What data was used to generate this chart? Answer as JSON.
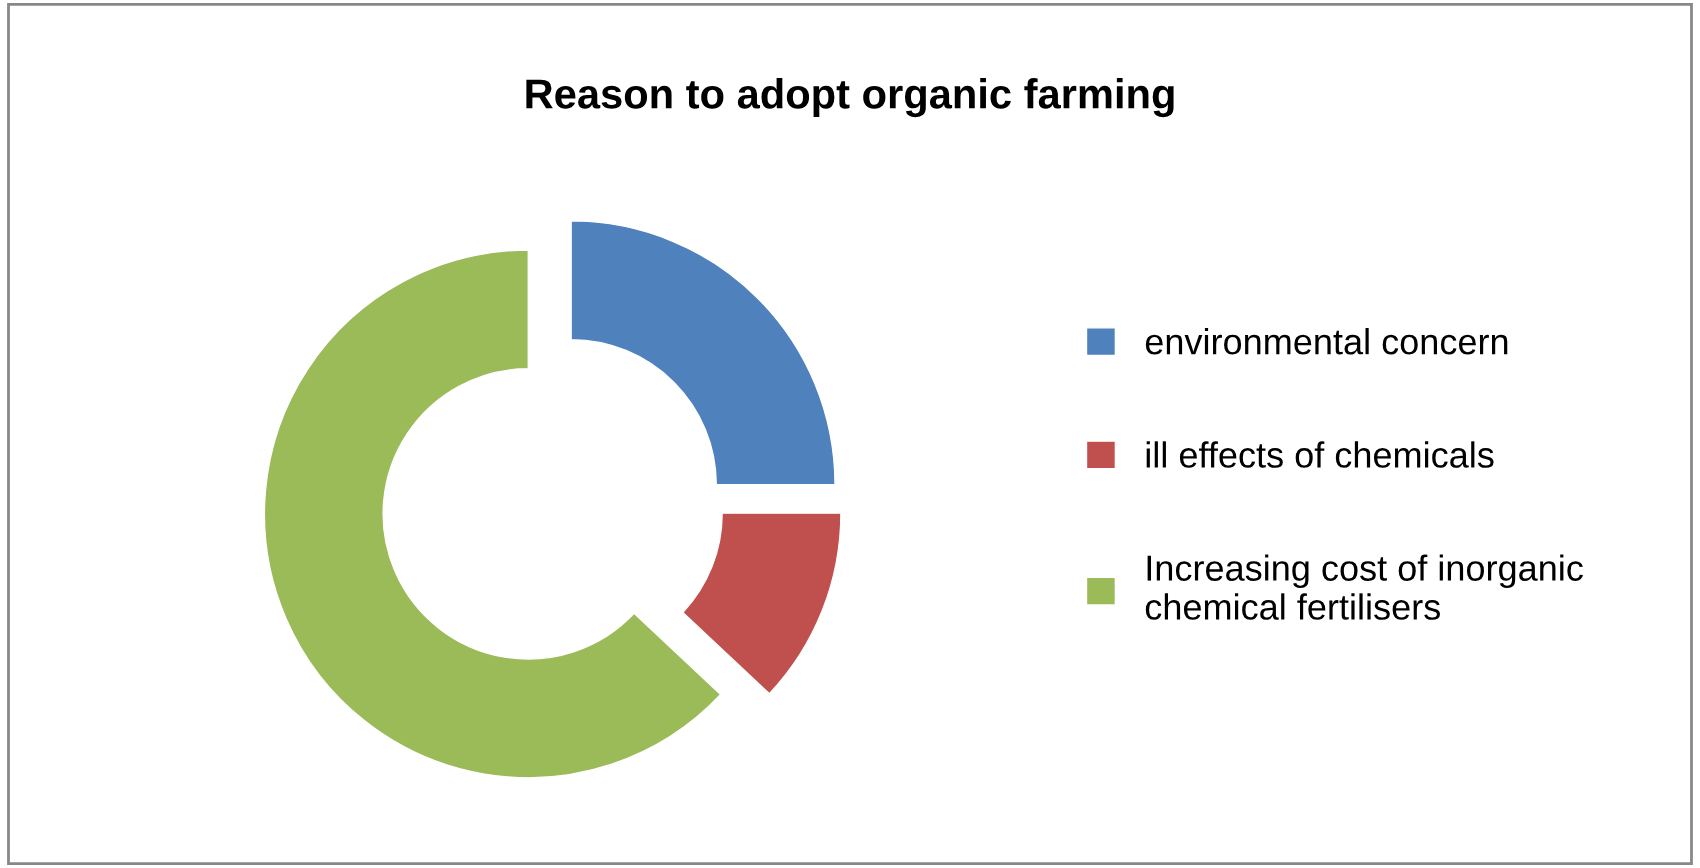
{
  "chart_data": {
    "type": "donut",
    "title": "Reason to adopt organic farming",
    "categories": [
      "environmental concern",
      "ill effects of chemicals",
      "Increasing cost of inorganic chemical fertilisers"
    ],
    "values": [
      25,
      12,
      63
    ],
    "colors": [
      "#4f81bd",
      "#c0504d",
      "#9bbb59"
    ],
    "legend": "right"
  }
}
